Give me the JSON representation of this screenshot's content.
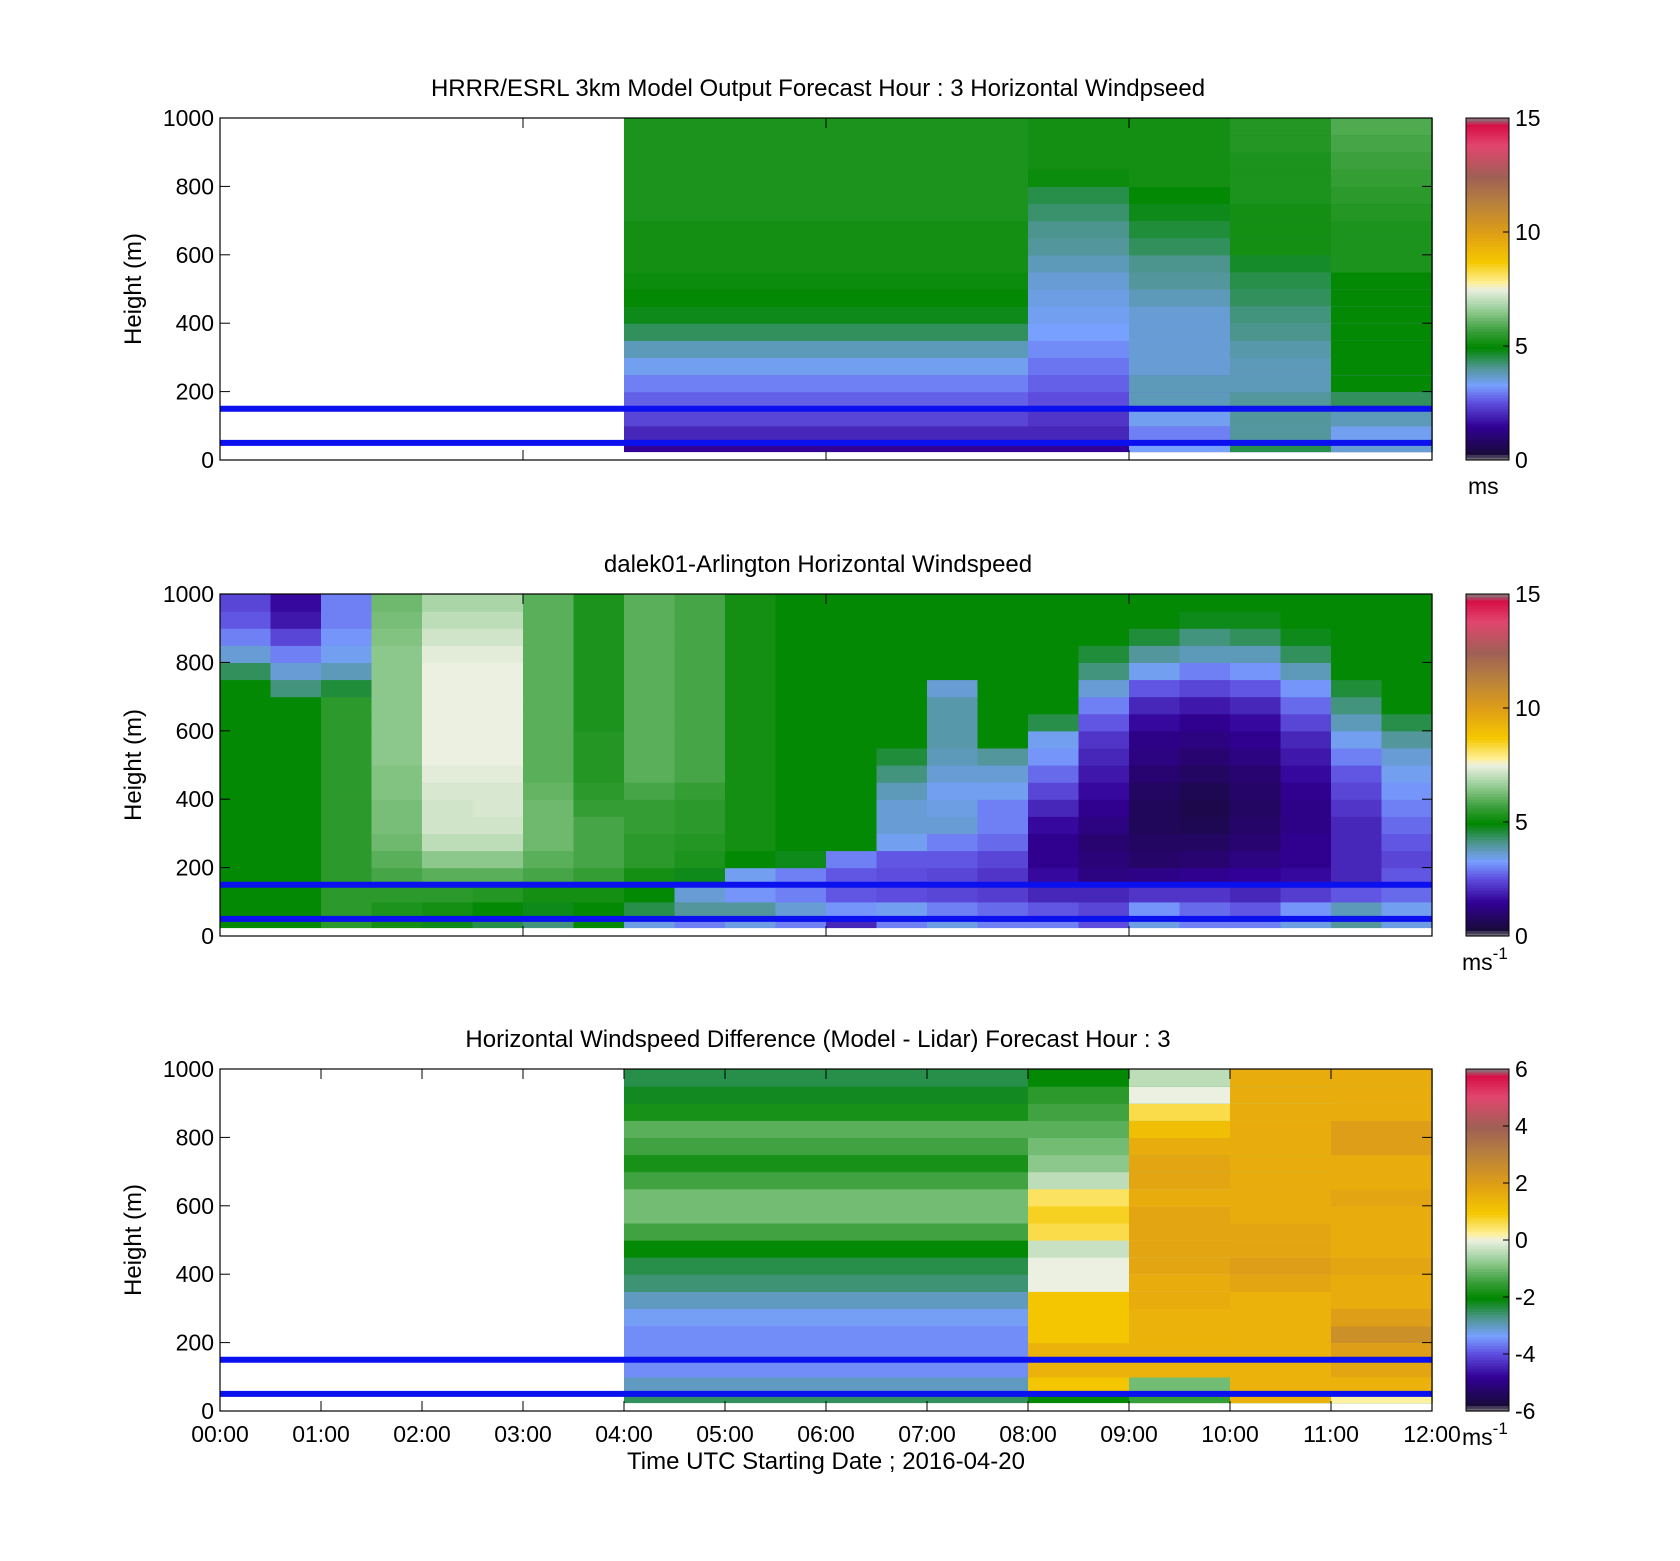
{
  "figure": {
    "xlabel": "Time UTC  Starting Date ; 2016-04-20"
  },
  "panels": [
    {
      "id": "model",
      "title": "HRRR/ESRL 3km Model Output   Forecast Hour : 3 Horizontal Windpseed",
      "ylabel": "Height (m)",
      "yticks": [
        "0",
        "200",
        "400",
        "600",
        "800",
        "1000"
      ],
      "colorbar": {
        "ticks": [
          "0",
          "5",
          "10",
          "15"
        ],
        "unit": "ms",
        "unit_sup": ""
      }
    },
    {
      "id": "lidar",
      "title": "dalek01-Arlington  Horizontal Windspeed",
      "ylabel": "Height (m)",
      "yticks": [
        "0",
        "200",
        "400",
        "600",
        "800",
        "1000"
      ],
      "colorbar": {
        "ticks": [
          "0",
          "5",
          "10",
          "15"
        ],
        "unit": "ms",
        "unit_sup": "-1"
      }
    },
    {
      "id": "diff",
      "title": "Horizontal Windspeed Difference (Model - Lidar) Forecast Hour : 3",
      "ylabel": "Height (m)",
      "yticks": [
        "0",
        "200",
        "400",
        "600",
        "800",
        "1000"
      ],
      "xticks": [
        "00:00",
        "01:00",
        "02:00",
        "03:00",
        "04:00",
        "05:00",
        "06:00",
        "07:00",
        "08:00",
        "09:00",
        "10:00",
        "11:00",
        "12:00"
      ],
      "colorbar": {
        "ticks": [
          "-6",
          "-4",
          "-2",
          "0",
          "2",
          "4",
          "6"
        ],
        "unit": "ms",
        "unit_sup": "-1"
      }
    }
  ],
  "chart_data": [
    {
      "type": "heatmap",
      "title": "HRRR/ESRL 3km Model Output   Forecast Hour : 3 Horizontal Windpseed",
      "ylabel": "Height (m)",
      "xlim_hours": [
        0,
        12
      ],
      "ylim": [
        0,
        1000
      ],
      "clim": [
        0,
        15
      ],
      "colorbar_unit": "ms",
      "reference_lines_m": [
        50,
        150
      ],
      "x_hours": [
        4,
        8,
        9,
        10,
        11
      ],
      "heights_m": [
        50,
        100,
        150,
        200,
        250,
        300,
        350,
        400,
        450,
        500,
        550,
        600,
        650,
        700,
        750,
        800,
        850,
        900,
        950,
        1000
      ],
      "values": [
        [
          1.5,
          1.5,
          3.3,
          4.5,
          3.6
        ],
        [
          2.0,
          2.0,
          3.0,
          4.0,
          3.4
        ],
        [
          2.4,
          2.2,
          3.4,
          4.0,
          3.8
        ],
        [
          2.7,
          2.5,
          3.8,
          4.0,
          4.4
        ],
        [
          3.0,
          2.7,
          3.8,
          3.8,
          5.0
        ],
        [
          3.4,
          2.9,
          3.6,
          3.8,
          5.0
        ],
        [
          3.8,
          3.1,
          3.6,
          3.9,
          5.0
        ],
        [
          4.4,
          3.3,
          3.6,
          4.1,
          5.0
        ],
        [
          4.8,
          3.4,
          3.6,
          4.2,
          5.0
        ],
        [
          5.0,
          3.5,
          3.8,
          4.4,
          5.0
        ],
        [
          5.1,
          3.6,
          4.0,
          4.5,
          5.0
        ],
        [
          5.2,
          3.8,
          4.1,
          4.7,
          5.3
        ],
        [
          5.2,
          4.0,
          4.4,
          5.2,
          5.3
        ],
        [
          5.2,
          4.1,
          4.6,
          5.2,
          5.3
        ],
        [
          5.3,
          4.3,
          4.8,
          5.2,
          5.4
        ],
        [
          5.3,
          4.5,
          5.0,
          5.3,
          5.5
        ],
        [
          5.3,
          5.1,
          5.2,
          5.3,
          5.6
        ],
        [
          5.3,
          5.2,
          5.2,
          5.3,
          5.7
        ],
        [
          5.3,
          5.2,
          5.2,
          5.4,
          5.8
        ],
        [
          5.3,
          5.2,
          5.2,
          5.4,
          5.9
        ]
      ]
    },
    {
      "type": "heatmap",
      "title": "dalek01-Arlington  Horizontal Windspeed",
      "ylabel": "Height (m)",
      "xlim_hours": [
        0,
        12
      ],
      "ylim": [
        0,
        1000
      ],
      "clim": [
        0,
        15
      ],
      "colorbar_unit": "ms-1",
      "reference_lines_m": [
        50,
        150
      ],
      "x_hours": [
        0,
        0.5,
        1,
        1.5,
        2,
        2.5,
        3,
        3.5,
        4,
        4.5,
        5,
        5.5,
        6,
        6.5,
        7,
        7.5,
        8,
        8.5,
        9,
        9.5,
        10,
        10.5,
        11,
        11.5
      ],
      "heights_m": [
        50,
        100,
        150,
        200,
        250,
        300,
        350,
        400,
        450,
        500,
        550,
        600,
        650,
        700,
        750,
        800,
        850,
        900,
        950,
        1000
      ],
      "values": [
        [
          5.0,
          5.0,
          5.5,
          5.2,
          4.8,
          4.5,
          4.2,
          5.0,
          3.5,
          3.0,
          3.5,
          3.0,
          2.0,
          3.0,
          3.5,
          3.0,
          3.0,
          2.5,
          3.5,
          3.0,
          3.0,
          3.5,
          4.0,
          3.5
        ],
        [
          5.0,
          5.0,
          5.5,
          5.3,
          5.2,
          5.0,
          4.8,
          5.0,
          4.5,
          4.0,
          4.0,
          3.6,
          3.2,
          3.4,
          3.0,
          2.8,
          2.6,
          2.4,
          3.2,
          2.8,
          2.6,
          3.2,
          3.8,
          3.4
        ],
        [
          5.0,
          5.0,
          5.5,
          5.5,
          5.5,
          5.4,
          5.2,
          5.2,
          5.0,
          3.6,
          3.2,
          3.0,
          2.6,
          2.5,
          2.4,
          2.3,
          2.0,
          2.0,
          2.2,
          2.2,
          2.0,
          2.3,
          2.6,
          2.8
        ],
        [
          5.0,
          5.0,
          5.5,
          5.8,
          6.0,
          6.0,
          5.8,
          5.6,
          5.2,
          4.8,
          3.4,
          3.0,
          2.6,
          2.5,
          2.4,
          2.2,
          1.6,
          1.2,
          1.3,
          1.4,
          1.5,
          1.6,
          2.0,
          2.6
        ],
        [
          5.0,
          5.0,
          5.5,
          6.0,
          6.5,
          6.5,
          6.0,
          5.8,
          5.5,
          5.3,
          5.0,
          4.8,
          3.0,
          2.6,
          2.6,
          2.4,
          1.4,
          1.1,
          0.9,
          1.0,
          1.2,
          1.4,
          2.0,
          2.4
        ],
        [
          5.0,
          5.0,
          5.5,
          6.2,
          7.0,
          7.0,
          6.2,
          5.8,
          5.5,
          5.4,
          5.2,
          5.0,
          5.0,
          3.4,
          3.0,
          2.8,
          1.4,
          1.0,
          0.8,
          0.8,
          1.0,
          1.4,
          2.0,
          2.6
        ],
        [
          5.0,
          5.0,
          5.5,
          6.3,
          7.2,
          7.2,
          6.2,
          5.8,
          5.6,
          5.5,
          5.2,
          5.0,
          5.0,
          3.6,
          3.6,
          3.0,
          1.6,
          1.2,
          0.7,
          0.6,
          0.9,
          1.3,
          2.0,
          2.8
        ],
        [
          5.0,
          5.0,
          5.5,
          6.3,
          7.2,
          7.3,
          6.2,
          5.6,
          5.6,
          5.5,
          5.2,
          5.0,
          5.0,
          3.6,
          3.5,
          3.0,
          2.0,
          1.4,
          0.7,
          0.5,
          0.8,
          1.3,
          2.2,
          3.0
        ],
        [
          5.0,
          5.0,
          5.5,
          6.4,
          7.3,
          7.3,
          6.1,
          5.5,
          5.8,
          5.6,
          5.2,
          5.0,
          5.0,
          3.8,
          3.4,
          3.4,
          2.4,
          1.6,
          0.8,
          0.6,
          0.9,
          1.4,
          2.4,
          3.2
        ],
        [
          5.0,
          5.0,
          5.5,
          6.4,
          7.4,
          7.4,
          6.0,
          5.4,
          6.0,
          5.8,
          5.2,
          5.0,
          5.0,
          4.2,
          3.6,
          3.6,
          2.8,
          1.8,
          1.0,
          0.8,
          1.0,
          1.6,
          2.6,
          3.4
        ],
        [
          5.0,
          5.0,
          5.5,
          6.5,
          7.5,
          7.5,
          6.0,
          5.4,
          6.0,
          5.8,
          5.2,
          5.0,
          5.0,
          4.6,
          3.8,
          4.0,
          3.2,
          2.0,
          1.2,
          1.0,
          1.2,
          1.8,
          3.0,
          3.6
        ],
        [
          5.0,
          5.0,
          5.5,
          6.5,
          7.5,
          7.5,
          6.0,
          5.4,
          6.0,
          5.8,
          5.2,
          5.0,
          5.0,
          5.0,
          3.9,
          5.0,
          3.4,
          2.2,
          1.3,
          1.2,
          1.4,
          2.0,
          3.4,
          4.0
        ],
        [
          5.0,
          5.0,
          5.5,
          6.5,
          7.5,
          7.5,
          6.0,
          5.3,
          6.0,
          5.8,
          5.2,
          5.0,
          5.0,
          5.0,
          3.9,
          5.0,
          4.5,
          2.6,
          1.6,
          1.4,
          1.6,
          2.4,
          3.8,
          4.5
        ],
        [
          5.0,
          5.0,
          5.5,
          6.5,
          7.5,
          7.5,
          6.0,
          5.3,
          6.0,
          5.8,
          5.2,
          5.0,
          5.0,
          5.0,
          3.9,
          5.0,
          5.0,
          3.0,
          2.0,
          1.8,
          2.0,
          2.8,
          4.2,
          5.0
        ],
        [
          5.0,
          4.2,
          4.6,
          6.5,
          7.5,
          7.5,
          6.0,
          5.3,
          6.0,
          5.8,
          5.2,
          5.0,
          5.0,
          5.0,
          3.6,
          5.0,
          5.0,
          3.6,
          2.6,
          2.4,
          2.6,
          3.2,
          4.6,
          5.0
        ],
        [
          4.4,
          3.6,
          3.8,
          6.5,
          7.5,
          7.5,
          6.0,
          5.3,
          6.0,
          5.8,
          5.2,
          5.0,
          5.0,
          5.0,
          5.0,
          5.0,
          5.0,
          4.2,
          3.4,
          3.0,
          3.2,
          3.8,
          5.0,
          5.0
        ],
        [
          3.6,
          3.0,
          3.4,
          6.5,
          7.4,
          7.4,
          6.0,
          5.3,
          6.0,
          5.8,
          5.2,
          5.0,
          5.0,
          5.0,
          5.0,
          5.0,
          5.0,
          4.6,
          4.0,
          3.8,
          3.8,
          4.4,
          5.0,
          5.0
        ],
        [
          3.0,
          2.4,
          3.2,
          6.4,
          7.2,
          7.2,
          6.0,
          5.3,
          6.0,
          5.8,
          5.2,
          5.0,
          5.0,
          5.0,
          5.0,
          5.0,
          5.0,
          5.0,
          4.6,
          4.2,
          4.4,
          4.8,
          5.0,
          5.0
        ],
        [
          2.6,
          1.8,
          3.0,
          6.3,
          7.0,
          7.0,
          6.0,
          5.3,
          6.0,
          5.8,
          5.2,
          5.0,
          5.0,
          5.0,
          5.0,
          5.0,
          5.0,
          5.0,
          5.0,
          4.8,
          4.8,
          5.0,
          5.0,
          5.0
        ],
        [
          2.4,
          1.6,
          3.0,
          6.2,
          6.8,
          6.8,
          6.0,
          5.3,
          6.0,
          5.8,
          5.2,
          5.0,
          5.0,
          5.0,
          5.0,
          5.0,
          5.0,
          5.0,
          5.0,
          5.0,
          5.0,
          5.0,
          5.0,
          5.0
        ]
      ]
    },
    {
      "type": "heatmap",
      "title": "Horizontal Windspeed Difference (Model - Lidar) Forecast Hour : 3",
      "xlabel": "Time UTC  Starting Date ; 2016-04-20",
      "ylabel": "Height (m)",
      "xlim_hours": [
        0,
        12
      ],
      "ylim": [
        0,
        1000
      ],
      "clim": [
        -6,
        6
      ],
      "colorbar_unit": "ms-1",
      "reference_lines_m": [
        50,
        150
      ],
      "x_hours": [
        4,
        8,
        9,
        10,
        11
      ],
      "heights_m": [
        50,
        100,
        150,
        200,
        250,
        300,
        350,
        400,
        450,
        500,
        550,
        600,
        650,
        700,
        750,
        800,
        850,
        900,
        950,
        1000
      ],
      "values": [
        [
          -2.5,
          -2.0,
          -1.5,
          1.5,
          0.2
        ],
        [
          -3.0,
          1.0,
          -1.0,
          1.5,
          1.5
        ],
        [
          -3.5,
          1.5,
          1.5,
          1.5,
          1.8
        ],
        [
          -3.5,
          1.5,
          1.5,
          1.5,
          2.0
        ],
        [
          -3.5,
          1.0,
          1.5,
          1.5,
          2.5
        ],
        [
          -3.3,
          1.0,
          1.5,
          1.5,
          2.0
        ],
        [
          -3.0,
          1.0,
          1.6,
          1.5,
          1.6
        ],
        [
          -2.6,
          0.0,
          1.6,
          1.8,
          1.6
        ],
        [
          -2.4,
          0.0,
          1.8,
          2.0,
          1.8
        ],
        [
          -2.0,
          -0.3,
          1.8,
          1.8,
          1.6
        ],
        [
          -1.4,
          0.6,
          1.8,
          1.8,
          1.6
        ],
        [
          -1.0,
          0.8,
          1.8,
          1.6,
          1.6
        ],
        [
          -1.0,
          0.5,
          1.6,
          1.6,
          1.8
        ],
        [
          -1.4,
          -0.4,
          1.8,
          1.6,
          1.6
        ],
        [
          -1.8,
          -0.8,
          1.8,
          1.6,
          1.6
        ],
        [
          -1.4,
          -1.0,
          1.6,
          1.6,
          2.0
        ],
        [
          -1.2,
          -1.2,
          1.2,
          1.6,
          2.0
        ],
        [
          -1.8,
          -1.4,
          0.6,
          1.6,
          1.6
        ],
        [
          -2.2,
          -1.6,
          0.0,
          1.6,
          1.6
        ],
        [
          -2.4,
          -2.0,
          -0.4,
          1.6,
          1.6
        ]
      ]
    }
  ]
}
